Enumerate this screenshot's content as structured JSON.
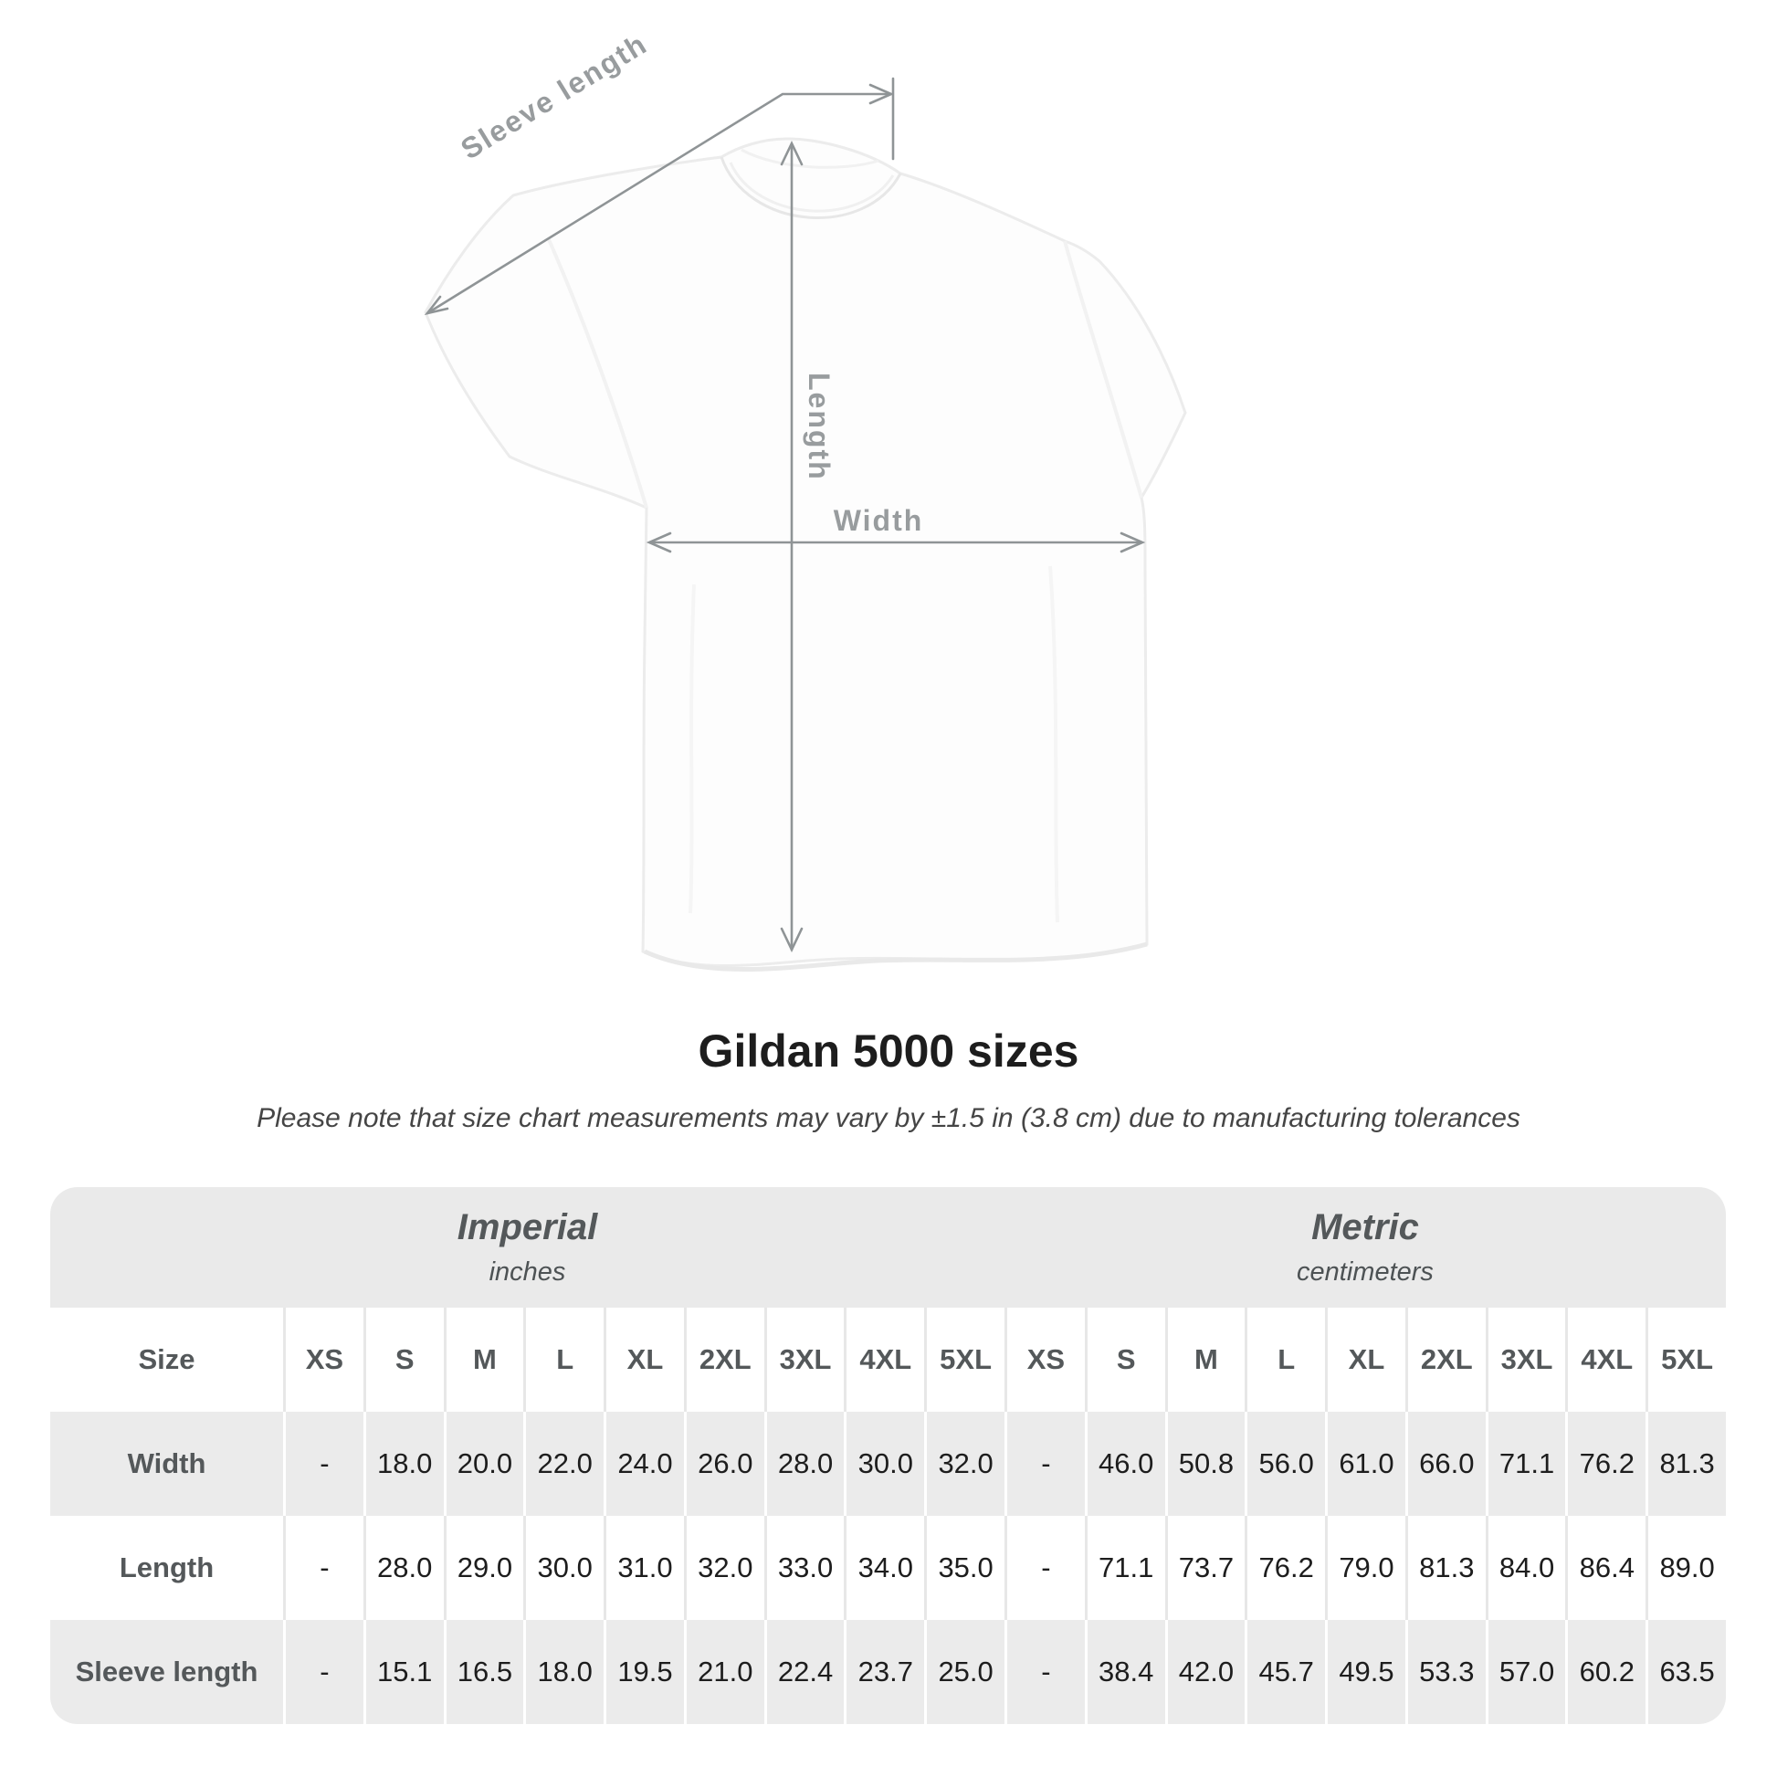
{
  "diagram": {
    "labels": {
      "sleeve_length": "Sleeve length",
      "length": "Length",
      "width": "Width"
    },
    "annotation_color": "#8f9496"
  },
  "title": "Gildan 5000 sizes",
  "subtitle": "Please note that size chart measurements may vary by ±1.5 in (3.8 cm) due to manufacturing tolerances",
  "table": {
    "section_headers": {
      "imperial": {
        "name": "Imperial",
        "unit": "inches"
      },
      "metric": {
        "name": "Metric",
        "unit": "centimeters"
      }
    },
    "size_col_header": "Size",
    "sizes": [
      "XS",
      "S",
      "M",
      "L",
      "XL",
      "2XL",
      "3XL",
      "4XL",
      "5XL"
    ],
    "rows": [
      {
        "label": "Width",
        "imperial": [
          "-",
          "18.0",
          "20.0",
          "22.0",
          "24.0",
          "26.0",
          "28.0",
          "30.0",
          "32.0"
        ],
        "metric": [
          "-",
          "46.0",
          "50.8",
          "56.0",
          "61.0",
          "66.0",
          "71.1",
          "76.2",
          "81.3"
        ]
      },
      {
        "label": "Length",
        "imperial": [
          "-",
          "28.0",
          "29.0",
          "30.0",
          "31.0",
          "32.0",
          "33.0",
          "34.0",
          "35.0"
        ],
        "metric": [
          "-",
          "71.1",
          "73.7",
          "76.2",
          "79.0",
          "81.3",
          "84.0",
          "86.4",
          "89.0"
        ]
      },
      {
        "label": "Sleeve length",
        "imperial": [
          "-",
          "15.1",
          "16.5",
          "18.0",
          "19.5",
          "21.0",
          "22.4",
          "23.7",
          "25.0"
        ],
        "metric": [
          "-",
          "38.4",
          "42.0",
          "45.7",
          "49.5",
          "53.3",
          "57.0",
          "60.2",
          "63.5"
        ]
      }
    ]
  },
  "colors": {
    "band_gray": "#eaeaea",
    "stripe_gray": "#ebebeb",
    "header_text": "#54585a",
    "value_text": "#1d1d1d",
    "annotation": "#8f9496"
  }
}
